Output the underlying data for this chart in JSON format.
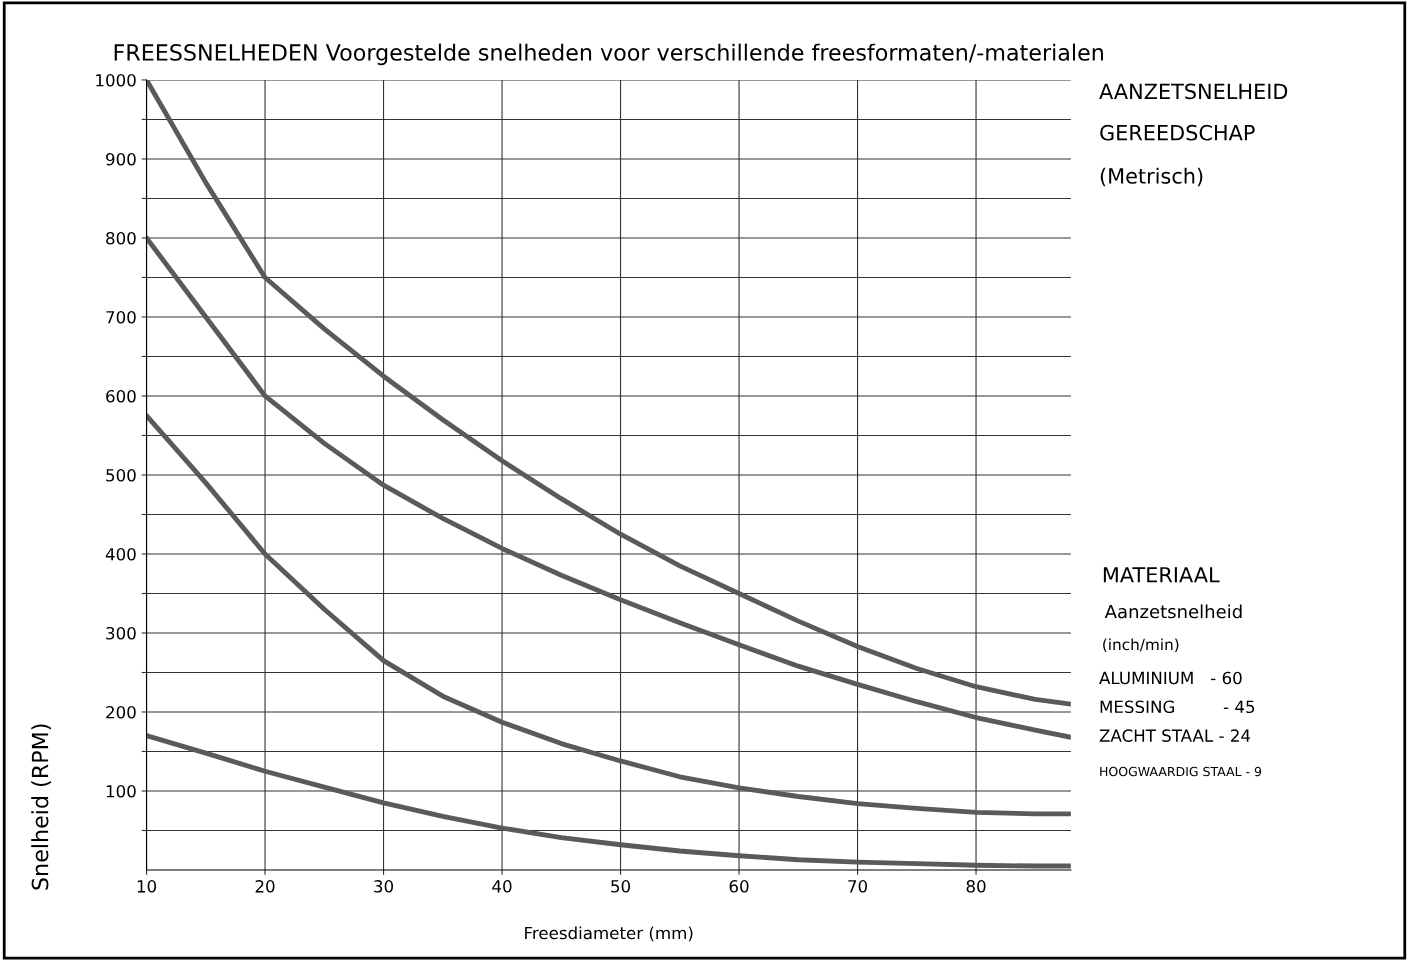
{
  "chart_data": {
    "type": "line",
    "title": "FREESSNELHEDEN Voorgestelde snelheden voor verschillende freesformaten/-materialen",
    "xlabel": "Freesdiameter (mm)",
    "ylabel": "Snelheid (RPM)",
    "xlim": [
      10,
      88
    ],
    "xticks": [
      10,
      20,
      30,
      40,
      50,
      60,
      70,
      80
    ],
    "ylim": [
      0,
      1000
    ],
    "yticks": [
      {
        "value": 50,
        "label": null
      },
      100,
      {
        "value": 150,
        "label": null
      },
      200,
      {
        "value": 250,
        "label": null
      },
      300,
      {
        "value": 350,
        "label": null
      },
      400,
      {
        "value": 450,
        "label": null
      },
      500,
      {
        "value": 550,
        "label": null
      },
      600,
      {
        "value": 650,
        "label": null
      },
      700,
      {
        "value": 750,
        "label": null
      },
      800,
      {
        "value": 850,
        "label": null
      },
      900,
      {
        "value": 950,
        "label": null
      },
      1000
    ],
    "grid": true,
    "line_style": "solid",
    "marker": "none",
    "x": [
      10,
      15,
      20,
      25,
      30,
      35,
      40,
      45,
      50,
      55,
      60,
      65,
      70,
      75,
      80,
      85,
      88
    ],
    "series": [
      {
        "color": "#5a5a5a",
        "values": [
          1000,
          870,
          750,
          685,
          625,
          570,
          518,
          470,
          425,
          385,
          350,
          315,
          283,
          255,
          232,
          216,
          210
        ]
      },
      {
        "color": "#5a5a5a",
        "values": [
          800,
          700,
          600,
          540,
          487,
          445,
          407,
          373,
          342,
          313,
          285,
          258,
          235,
          213,
          193,
          177,
          168
        ]
      },
      {
        "color": "#5a5a5a",
        "values": [
          575,
          490,
          400,
          330,
          265,
          220,
          187,
          160,
          138,
          118,
          104,
          93,
          84,
          78,
          73,
          71,
          71
        ]
      },
      {
        "color": "#5a5a5a",
        "values": [
          170,
          148,
          125,
          105,
          85,
          68,
          53,
          41,
          32,
          24,
          18,
          13,
          10,
          8,
          6,
          5,
          5
        ]
      }
    ],
    "annotations": [
      "AANZETSNELHEID",
      "GEREEDSCHAP",
      "(Metrisch)",
      "MATERIAAL",
      "Aanzetsnelheid",
      "(inch/min)",
      "ALUMINIUM   - 60",
      "MESSING         - 45",
      "ZACHT STAAL - 24",
      "HOOGWAARDIG STAAL - 9"
    ]
  }
}
